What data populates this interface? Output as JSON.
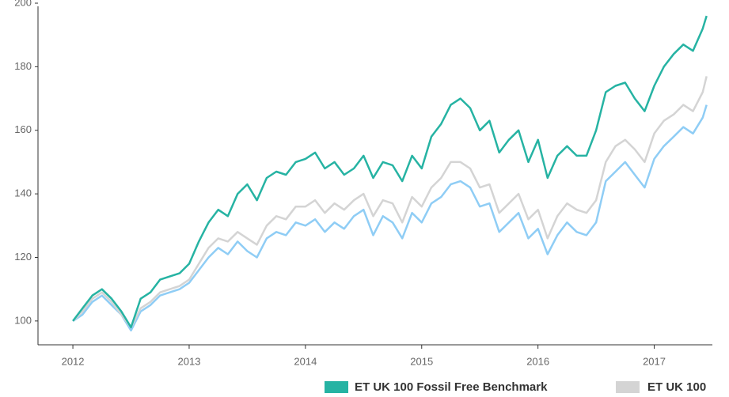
{
  "chart_data": {
    "type": "line",
    "x": [
      2012,
      2012.083,
      2012.167,
      2012.25,
      2012.333,
      2012.417,
      2012.5,
      2012.583,
      2012.667,
      2012.75,
      2012.833,
      2012.917,
      2013,
      2013.083,
      2013.167,
      2013.25,
      2013.333,
      2013.417,
      2013.5,
      2013.583,
      2013.667,
      2013.75,
      2013.833,
      2013.917,
      2014,
      2014.083,
      2014.167,
      2014.25,
      2014.333,
      2014.417,
      2014.5,
      2014.583,
      2014.667,
      2014.75,
      2014.833,
      2014.917,
      2015,
      2015.083,
      2015.167,
      2015.25,
      2015.333,
      2015.417,
      2015.5,
      2015.583,
      2015.667,
      2015.75,
      2015.833,
      2015.917,
      2016,
      2016.083,
      2016.167,
      2016.25,
      2016.333,
      2016.417,
      2016.5,
      2016.583,
      2016.667,
      2016.75,
      2016.833,
      2016.917,
      2017,
      2017.083,
      2017.167,
      2017.25,
      2017.333,
      2017.417,
      2017.45
    ],
    "series": [
      {
        "color": "#8fcdf5",
        "values": [
          100,
          102,
          106,
          108,
          105,
          102,
          97,
          103,
          105,
          108,
          109,
          110,
          112,
          116,
          120,
          123,
          121,
          125,
          122,
          120,
          126,
          128,
          127,
          131,
          130,
          132,
          128,
          131,
          129,
          133,
          135,
          127,
          133,
          131,
          126,
          134,
          131,
          137,
          139,
          143,
          144,
          142,
          136,
          137,
          128,
          131,
          134,
          126,
          129,
          121,
          127,
          131,
          128,
          127,
          131,
          144,
          147,
          150,
          146,
          142,
          151,
          155,
          158,
          161,
          159,
          164,
          168
        ]
      },
      {
        "name": "ET UK 100",
        "color": "#d4d4d4",
        "values": [
          100,
          103,
          107,
          109,
          106,
          102,
          98,
          104,
          106,
          109,
          110,
          111,
          113,
          118,
          123,
          126,
          125,
          128,
          126,
          124,
          130,
          133,
          132,
          136,
          136,
          138,
          134,
          137,
          135,
          138,
          140,
          133,
          138,
          137,
          131,
          139,
          136,
          142,
          145,
          150,
          150,
          148,
          142,
          143,
          134,
          137,
          140,
          132,
          135,
          126,
          133,
          137,
          135,
          134,
          138,
          150,
          155,
          157,
          154,
          150,
          159,
          163,
          165,
          168,
          166,
          172,
          177
        ]
      },
      {
        "name": "ET UK 100 Fossil Free Benchmark",
        "color": "#26b3a3",
        "values": [
          100,
          104,
          108,
          110,
          107,
          103,
          98,
          107,
          109,
          113,
          114,
          115,
          118,
          125,
          131,
          135,
          133,
          140,
          143,
          138,
          145,
          147,
          146,
          150,
          151,
          153,
          148,
          150,
          146,
          148,
          152,
          145,
          150,
          149,
          144,
          152,
          148,
          158,
          162,
          168,
          170,
          167,
          160,
          163,
          153,
          157,
          160,
          150,
          157,
          145,
          152,
          155,
          152,
          152,
          160,
          172,
          174,
          175,
          170,
          166,
          174,
          180,
          184,
          187,
          185,
          192,
          196
        ]
      }
    ],
    "legend_order": [
      "chart_data.series.2",
      "chart_data.series.1"
    ],
    "xlim": [
      2011.7,
      2017.5
    ],
    "xticks": [
      2012,
      2013,
      2014,
      2015,
      2016,
      2017
    ],
    "ylim": [
      92.5,
      201
    ],
    "yticks": [
      100,
      120,
      140,
      160,
      180,
      200
    ]
  }
}
